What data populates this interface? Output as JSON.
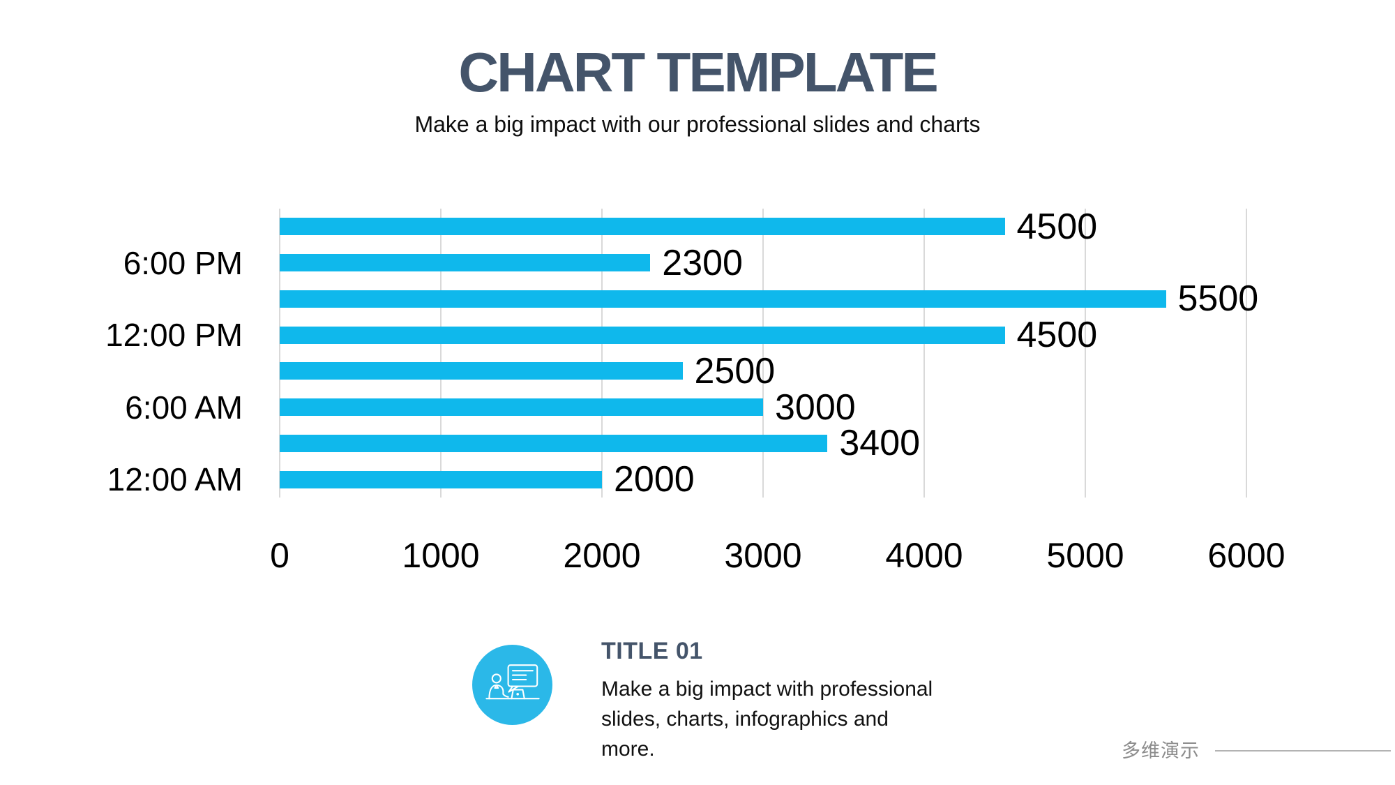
{
  "header": {
    "title": "CHART TEMPLATE",
    "subtitle": "Make a big impact with our professional slides and charts"
  },
  "chart_data": {
    "type": "bar",
    "orientation": "horizontal",
    "rows_top_to_bottom": [
      {
        "label": "",
        "value": 4500
      },
      {
        "label": "6:00 PM",
        "value": 2300
      },
      {
        "label": "",
        "value": 5500
      },
      {
        "label": "12:00 PM",
        "value": 4500
      },
      {
        "label": "",
        "value": 2500
      },
      {
        "label": "6:00 AM",
        "value": 3000
      },
      {
        "label": "",
        "value": 3400
      },
      {
        "label": "12:00 AM",
        "value": 2000
      }
    ],
    "x_ticks": [
      0,
      1000,
      2000,
      3000,
      4000,
      5000,
      6000
    ],
    "xlim": [
      0,
      6000
    ],
    "grid": true,
    "data_labels": true,
    "bar_color": "#0FB8EC",
    "gridline_color": "#d9d9d9",
    "label_color": "#000000"
  },
  "info": {
    "icon": "presenter-chat-icon",
    "title": "TITLE 01",
    "description": "Make a big impact with professional slides, charts, infographics and more."
  },
  "footer": {
    "brand": "多维演示"
  },
  "colors": {
    "accent_cyan": "#0FB8EC",
    "circle_cyan": "#2BB8E8",
    "heading_slate": "#44546A",
    "footer_gray": "#8c8c8c"
  }
}
